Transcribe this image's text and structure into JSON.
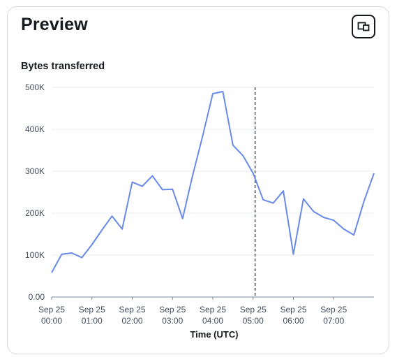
{
  "card": {
    "title": "Preview",
    "expand_icon": "popout-icon"
  },
  "colors": {
    "series": "#688ae8",
    "grid": "#e9ebed",
    "axis": "#7d8998",
    "marker_line": "#414d5c"
  },
  "chart_data": {
    "type": "line",
    "title": "Bytes transferred",
    "xlabel": "Time (UTC)",
    "ylabel": "",
    "ylim": [
      0,
      500000
    ],
    "y_ticks": [
      0,
      100000,
      200000,
      300000,
      400000,
      500000
    ],
    "y_tick_labels": [
      "0.00",
      "100K",
      "200K",
      "300K",
      "400K",
      "500K"
    ],
    "x_ticks": [
      {
        "date": "Sep 25",
        "time": "00:00",
        "hour": 0
      },
      {
        "date": "Sep 25",
        "time": "01:00",
        "hour": 1
      },
      {
        "date": "Sep 25",
        "time": "02:00",
        "hour": 2
      },
      {
        "date": "Sep 25",
        "time": "03:00",
        "hour": 3
      },
      {
        "date": "Sep 25",
        "time": "04:00",
        "hour": 4
      },
      {
        "date": "Sep 25",
        "time": "05:00",
        "hour": 5
      },
      {
        "date": "Sep 25",
        "time": "06:00",
        "hour": 6
      },
      {
        "date": "Sep 25",
        "time": "07:00",
        "hour": 7
      }
    ],
    "xlim": [
      0,
      8
    ],
    "grid": true,
    "vertical_marker_hour": 5.05,
    "series": [
      {
        "x": [
          0,
          0.25,
          0.5,
          0.75,
          1,
          1.25,
          1.5,
          1.75,
          2,
          2.25,
          2.5,
          2.75,
          3,
          3.25,
          3.5,
          3.75,
          4,
          4.25,
          4.5,
          4.75,
          5,
          5.25,
          5.5,
          5.75,
          6,
          6.25,
          6.5,
          6.75,
          7,
          7.25,
          7.5,
          7.75,
          8
        ],
        "values": [
          58000,
          102000,
          105000,
          94000,
          125000,
          160000,
          193000,
          162000,
          274000,
          264000,
          289000,
          256000,
          257000,
          187000,
          290000,
          385000,
          485000,
          490000,
          362000,
          337000,
          295000,
          232000,
          224000,
          253000,
          102000,
          234000,
          204000,
          190000,
          183000,
          162000,
          148000,
          228000,
          295000
        ]
      }
    ]
  }
}
